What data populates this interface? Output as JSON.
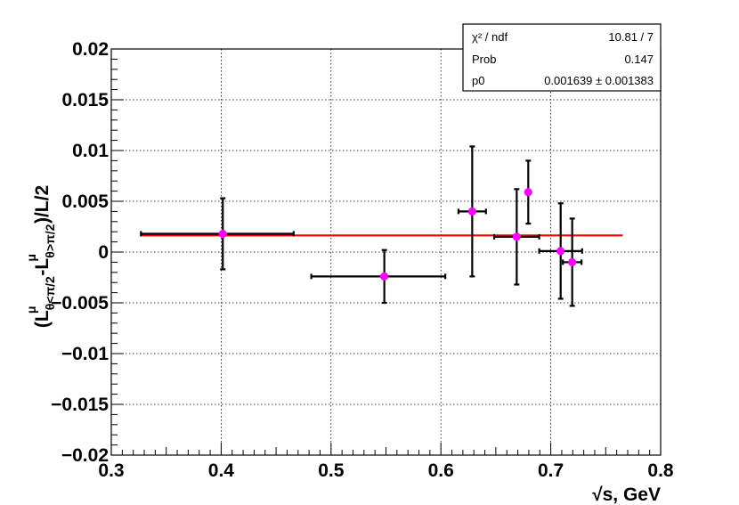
{
  "chart_data": {
    "type": "scatter",
    "xlabel": "√s, GeV",
    "ylabel_parts": {
      "open": "(L",
      "sub1": "θ<π/2",
      "sup1": "μ",
      "minus": "-L",
      "sub2": "θ>π/2",
      "sup2": "μ",
      "close": ")/L/2"
    },
    "xlim": [
      0.3,
      0.8
    ],
    "ylim": [
      -0.02,
      0.02
    ],
    "x_ticks": [
      "0.3",
      "0.4",
      "0.5",
      "0.6",
      "0.7",
      "0.8"
    ],
    "x_tick_values": [
      0.3,
      0.4,
      0.5,
      0.6,
      0.7,
      0.8
    ],
    "y_ticks": [
      "−0.02",
      "−0.015",
      "−0.01",
      "−0.005",
      "0",
      "0.005",
      "0.01",
      "0.015",
      "0.02"
    ],
    "y_tick_values": [
      -0.02,
      -0.015,
      -0.01,
      -0.005,
      0,
      0.005,
      0.01,
      0.015,
      0.02
    ],
    "grid": true,
    "points": [
      {
        "x": 0.4015,
        "y": 0.0018,
        "xerr_lo": 0.0745,
        "xerr_hi": 0.0645,
        "yerr": 0.0035
      },
      {
        "x": 0.5485,
        "y": -0.0024,
        "xerr_lo": 0.0665,
        "xerr_hi": 0.0555,
        "yerr": 0.0026
      },
      {
        "x": 0.6285,
        "y": 0.004,
        "xerr_lo": 0.0125,
        "xerr_hi": 0.0125,
        "yerr": 0.0064
      },
      {
        "x": 0.669,
        "y": 0.0015,
        "xerr_lo": 0.0205,
        "xerr_hi": 0.0205,
        "yerr": 0.0047
      },
      {
        "x": 0.6795,
        "y": 0.0059,
        "xerr_lo": 0.0,
        "xerr_hi": 0.0,
        "yerr": 0.0031
      },
      {
        "x": 0.709,
        "y": 0.0001,
        "xerr_lo": 0.0195,
        "xerr_hi": 0.0195,
        "yerr": 0.0047
      },
      {
        "x": 0.7195,
        "y": -0.001,
        "xerr_lo": 0.0085,
        "xerr_hi": 0.0085,
        "yerr": 0.0043
      }
    ],
    "fit": {
      "y": 0.001639,
      "x_from": 0.3275,
      "x_to": 0.7655
    },
    "colors": {
      "marker": "#ff00ff",
      "fit": "#ff0000",
      "errorbar": "#000000",
      "grid": "#000000"
    }
  },
  "stats": {
    "rows": [
      {
        "label": "χ² / ndf",
        "value": "10.81 / 7"
      },
      {
        "label": "Prob",
        "value": "0.147"
      },
      {
        "label": "p0",
        "value": "0.001639 ± 0.001383"
      }
    ]
  }
}
